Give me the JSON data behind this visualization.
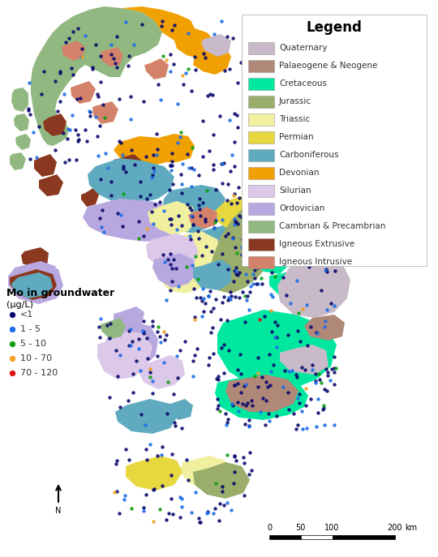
{
  "legend_title": "Legend",
  "geology_entries": [
    {
      "label": "Quaternary",
      "color": "#C8BAC8"
    },
    {
      "label": "Palaeogene & Neogene",
      "color": "#B08878"
    },
    {
      "label": "Cretaceous",
      "color": "#00E8A0"
    },
    {
      "label": "Jurassic",
      "color": "#9AAD6A"
    },
    {
      "label": "Triassic",
      "color": "#F0F0A0"
    },
    {
      "label": "Permian",
      "color": "#E8D840"
    },
    {
      "label": "Carboniferous",
      "color": "#60AABF"
    },
    {
      "label": "Devonian",
      "color": "#F0A000"
    },
    {
      "label": "Silurian",
      "color": "#DCC8E8"
    },
    {
      "label": "Ordovician",
      "color": "#B8A8E0"
    },
    {
      "label": "Cambrian & Precambrian",
      "color": "#90B880"
    },
    {
      "label": "Igneous Extrusive",
      "color": "#8B3820"
    },
    {
      "label": "Igneous Intrusive",
      "color": "#D4826A"
    }
  ],
  "mo_legend_title": "Mo in groundwater",
  "mo_legend_unit": "(µg/L)",
  "mo_entries": [
    {
      "label": "<1",
      "color": "#0A0A6E"
    },
    {
      "label": "1 - 5",
      "color": "#1E6EE8"
    },
    {
      "label": "5 - 10",
      "color": "#10A010"
    },
    {
      "label": "10 - 70",
      "color": "#F0A020"
    },
    {
      "label": "70 - 120",
      "color": "#E01010"
    }
  ],
  "background_color": "#FFFFFF"
}
